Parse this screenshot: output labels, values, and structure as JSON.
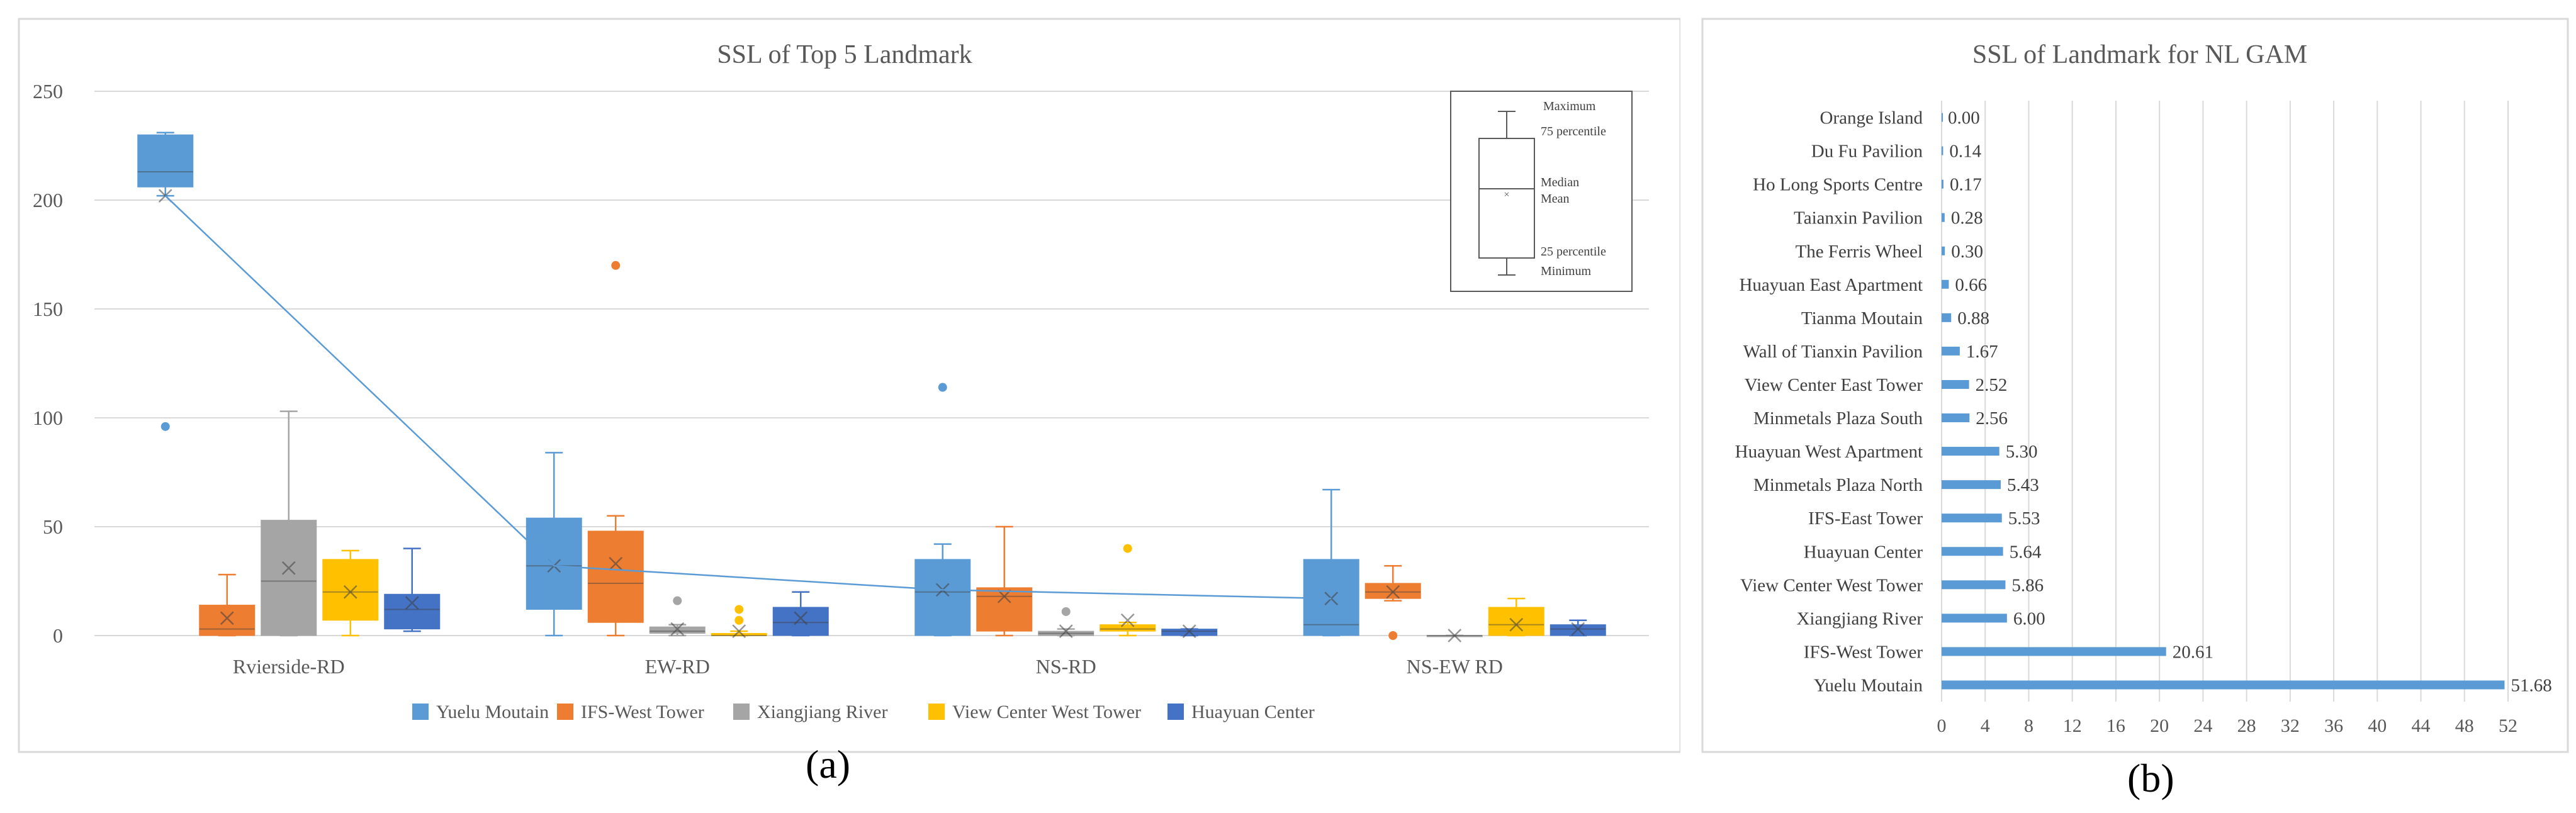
{
  "colors": {
    "yuelu": "#5B9BD5",
    "ifs": "#ED7D31",
    "xiangjiang": "#A5A5A5",
    "viewcenter": "#FFC000",
    "huayuan": "#4472C4",
    "barb": "#5B9BD5",
    "meanline": "#5B9BD5",
    "grid": "#D9D9D9",
    "axis_text": "#595959"
  },
  "panel_a": {
    "caption": "(a)",
    "legend_key": {
      "maximum": "Maximum",
      "p75": "75 percentile",
      "median": "Median",
      "mean": "Mean",
      "p25": "25 percentile",
      "minimum": "Minimum"
    }
  },
  "panel_b": {
    "caption": "(b)"
  },
  "chart_data": [
    {
      "type": "box",
      "title": "SSL of Top 5 Landmark",
      "xlabel": "",
      "ylabel": "",
      "ylim": [
        0,
        250
      ],
      "yticks": [
        0,
        50,
        100,
        150,
        200,
        250
      ],
      "grid": true,
      "legend_position": "bottom",
      "categories": [
        "Rvierside-RD",
        "EW-RD",
        "NS-RD",
        "NS-EW RD"
      ],
      "series": [
        {
          "name": "Yuelu Moutain",
          "boxes": [
            {
              "min": 202,
              "q1": 206,
              "median": 213,
              "q3": 230,
              "max": 231,
              "mean": 202,
              "outliers": [
                96
              ]
            },
            {
              "min": 0,
              "q1": 12,
              "median": 32,
              "q3": 54,
              "max": 84,
              "mean": 32,
              "outliers": []
            },
            {
              "min": 0,
              "q1": 0,
              "median": 20,
              "q3": 35,
              "max": 42,
              "mean": 21,
              "outliers": [
                114
              ]
            },
            {
              "min": 0,
              "q1": 0,
              "median": 5,
              "q3": 35,
              "max": 67,
              "mean": 17,
              "outliers": []
            }
          ]
        },
        {
          "name": "IFS-West Tower",
          "boxes": [
            {
              "min": 0,
              "q1": 0,
              "median": 3,
              "q3": 14,
              "max": 28,
              "mean": 8,
              "outliers": []
            },
            {
              "min": 0,
              "q1": 6,
              "median": 24,
              "q3": 48,
              "max": 55,
              "mean": 33,
              "outliers": [
                170
              ]
            },
            {
              "min": 0,
              "q1": 2,
              "median": 18,
              "q3": 22,
              "max": 50,
              "mean": 18,
              "outliers": []
            },
            {
              "min": 16,
              "q1": 17,
              "median": 20,
              "q3": 24,
              "max": 32,
              "mean": 20,
              "outliers": [
                0
              ]
            }
          ]
        },
        {
          "name": "Xiangjiang River",
          "boxes": [
            {
              "min": 0,
              "q1": 0,
              "median": 25,
              "q3": 53,
              "max": 103,
              "mean": 31,
              "outliers": []
            },
            {
              "min": 0,
              "q1": 1,
              "median": 2,
              "q3": 4,
              "max": 5,
              "mean": 3,
              "outliers": [
                16
              ]
            },
            {
              "min": 0,
              "q1": 0,
              "median": 1,
              "q3": 2,
              "max": 3,
              "mean": 2,
              "outliers": [
                11
              ]
            },
            {
              "min": 0,
              "q1": 0,
              "median": 0,
              "q3": 0,
              "max": 0,
              "mean": 0,
              "outliers": []
            }
          ]
        },
        {
          "name": "View Center West Tower",
          "boxes": [
            {
              "min": 0,
              "q1": 7,
              "median": 20,
              "q3": 35,
              "max": 39,
              "mean": 20,
              "outliers": []
            },
            {
              "min": 0,
              "q1": 0,
              "median": 0,
              "q3": 1,
              "max": 2,
              "mean": 2,
              "outliers": [
                7,
                12
              ]
            },
            {
              "min": 0,
              "q1": 2,
              "median": 3,
              "q3": 5,
              "max": 6,
              "mean": 7,
              "outliers": [
                40
              ]
            },
            {
              "min": 0,
              "q1": 0,
              "median": 5,
              "q3": 13,
              "max": 17,
              "mean": 5,
              "outliers": []
            }
          ]
        },
        {
          "name": "Huayuan Center",
          "boxes": [
            {
              "min": 2,
              "q1": 3,
              "median": 12,
              "q3": 19,
              "max": 40,
              "mean": 15,
              "outliers": []
            },
            {
              "min": 0,
              "q1": 0,
              "median": 6,
              "q3": 13,
              "max": 20,
              "mean": 8,
              "outliers": []
            },
            {
              "min": 0,
              "q1": 0,
              "median": 2,
              "q3": 3,
              "max": 3,
              "mean": 2,
              "outliers": []
            },
            {
              "min": 0,
              "q1": 0,
              "median": 3,
              "q3": 5,
              "max": 7,
              "mean": 3,
              "outliers": []
            }
          ]
        }
      ],
      "mean_line": {
        "series": "Yuelu Moutain",
        "values": [
          202,
          32,
          21,
          17
        ]
      }
    },
    {
      "type": "bar",
      "orientation": "horizontal",
      "title": "SSL of Landmark for NL GAM",
      "xlim": [
        0,
        52
      ],
      "xticks": [
        0,
        4,
        8,
        12,
        16,
        20,
        24,
        28,
        32,
        36,
        40,
        44,
        48,
        52
      ],
      "grid": true,
      "categories": [
        "Orange Island",
        "Du Fu Pavilion",
        "Ho Long Sports Centre",
        "Taianxin Pavilion",
        "The Ferris Wheel",
        "Huayuan East Apartment",
        "Tianma Moutain",
        "Wall of Tianxin Pavilion",
        "View Center East Tower",
        "Minmetals Plaza South",
        "Huayuan West Apartment",
        "Minmetals Plaza North",
        "IFS-East Tower",
        "Huayuan Center",
        "View Center West Tower",
        "Xiangjiang River",
        "IFS-West Tower",
        "Yuelu Moutain"
      ],
      "values": [
        0.0,
        0.14,
        0.17,
        0.28,
        0.3,
        0.66,
        0.88,
        1.67,
        2.52,
        2.56,
        5.3,
        5.43,
        5.53,
        5.64,
        5.86,
        6.0,
        20.61,
        51.68
      ],
      "labels": [
        "0.00",
        "0.14",
        "0.17",
        "0.28",
        "0.30",
        "0.66",
        "0.88",
        "1.67",
        "2.52",
        "2.56",
        "5.30",
        "5.43",
        "5.53",
        "5.64",
        "5.86",
        "6.00",
        "20.61",
        "51.68"
      ]
    }
  ]
}
